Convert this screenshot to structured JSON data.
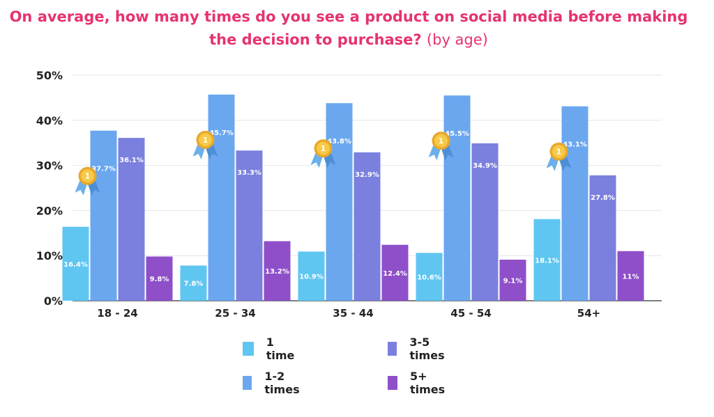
{
  "title": {
    "main": "On average, how many times do you see a product on social media before making the decision to purchase?",
    "suffix": "(by age)"
  },
  "colors": {
    "title": "#e6336f",
    "series": [
      "#5fc6f1",
      "#6aa7ef",
      "#7b80de",
      "#8f4fc9"
    ],
    "medal": "#f2b632"
  },
  "chart_data": {
    "type": "bar",
    "categories": [
      "18 - 24",
      "25 - 34",
      "35 - 44",
      "45 - 54",
      "54+"
    ],
    "series": [
      {
        "name": "1 time",
        "values": [
          16.4,
          7.8,
          10.9,
          10.6,
          18.1
        ],
        "labels": [
          "16.4%",
          "7.8%",
          "10.9%",
          "10.6%",
          "18.1%"
        ]
      },
      {
        "name": "1-2 times",
        "values": [
          37.7,
          45.7,
          43.8,
          45.5,
          43.1
        ],
        "labels": [
          "37.7%",
          "45.7%",
          "43.8%",
          "45.5%",
          "43.1%"
        ]
      },
      {
        "name": "3-5 times",
        "values": [
          36.1,
          33.3,
          32.9,
          34.9,
          27.8
        ],
        "labels": [
          "36.1%",
          "33.3%",
          "32.9%",
          "34.9%",
          "27.8%"
        ]
      },
      {
        "name": "5+ times",
        "values": [
          9.8,
          13.2,
          12.4,
          9.1,
          11
        ],
        "labels": [
          "9.8%",
          "13.2%",
          "12.4%",
          "9.1%",
          "11%"
        ]
      }
    ],
    "yticks": [
      "0%",
      "10%",
      "20%",
      "30%",
      "40%",
      "50%"
    ],
    "ylim": [
      0,
      50
    ],
    "grid": true,
    "legend_position": "bottom",
    "annotation": "first-place medal icon above the leading bar in each age group"
  }
}
